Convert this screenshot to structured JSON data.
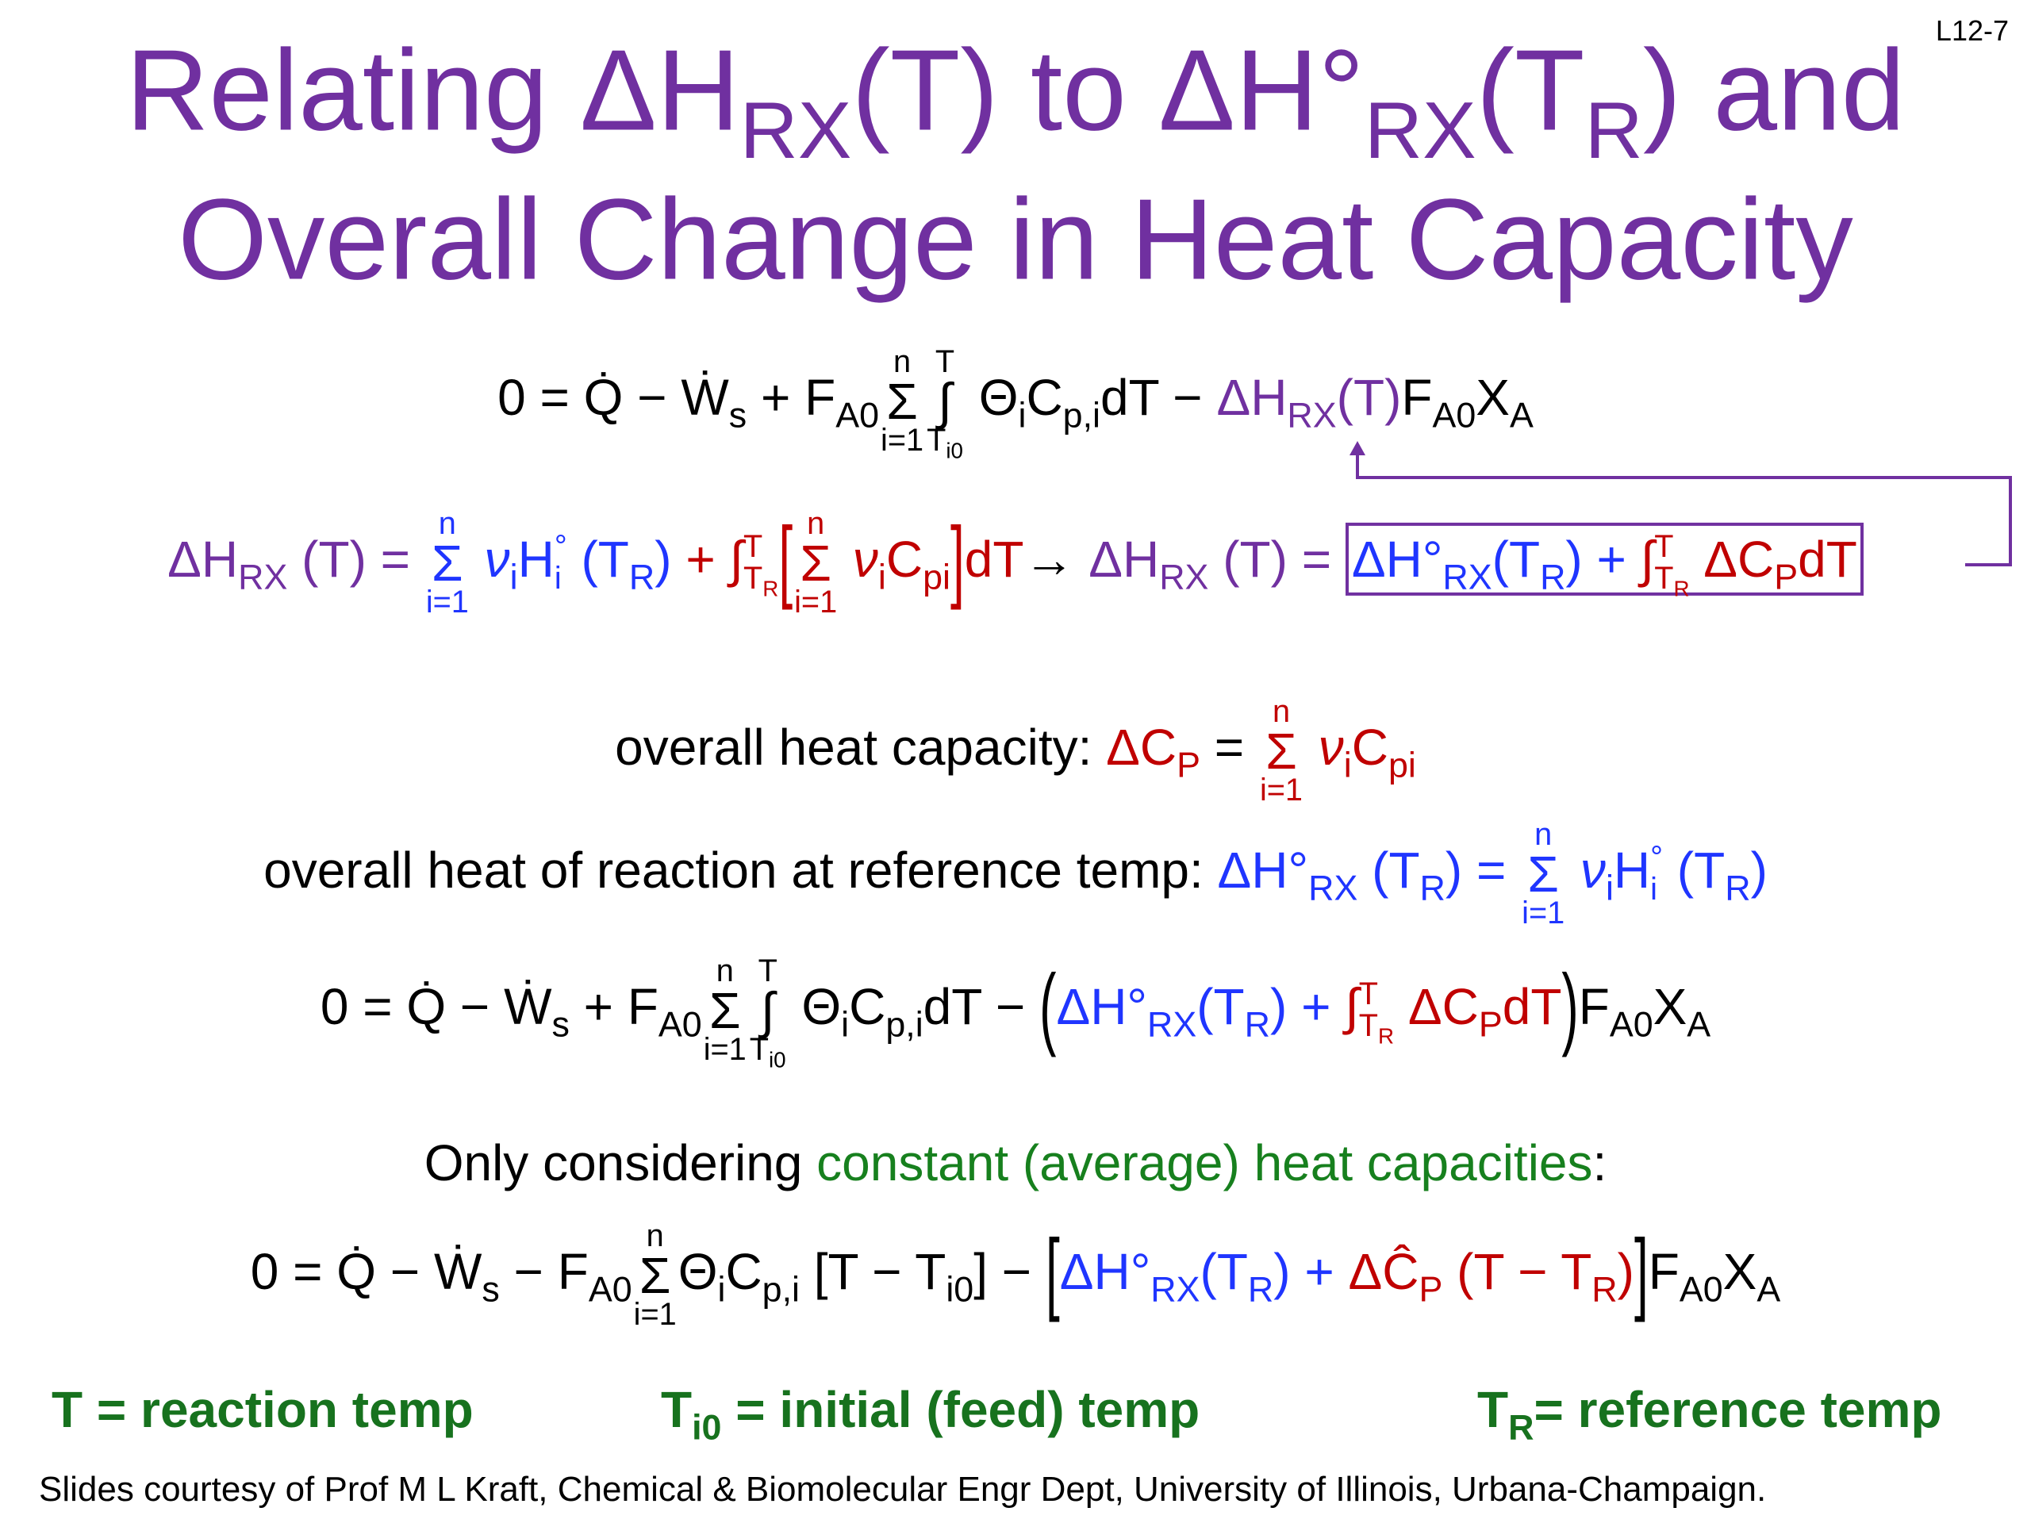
{
  "slide_number": "L12-7",
  "title": {
    "line1": [
      "Relating ΔH",
      "RX",
      "(T) to ΔH°",
      "RX",
      "(T",
      "R",
      ") and"
    ],
    "line2": "Overall Change in Heat Capacity"
  },
  "eq1": [
    "0 = Q̇ − Ẇ",
    "s",
    " + F",
    "A0",
    "n",
    "Σ",
    "i=1",
    "T",
    "∫",
    "T",
    "i0",
    " Θ",
    "i",
    "C",
    "p,i",
    "dT − ",
    "ΔH",
    "RX",
    "(T)",
    "F",
    "A0",
    "X",
    "A"
  ],
  "eq2": [
    "ΔH",
    "RX",
    " (T) = ",
    "n",
    "Σ",
    "i=1",
    " ν",
    "i",
    "H",
    "°",
    "i",
    " (T",
    "R",
    ")",
    " + ∫",
    "T",
    "T",
    "R",
    "[",
    "n",
    "Σ",
    "i=1",
    " ν",
    "i",
    "C",
    "pi",
    "]",
    "dT",
    "→ ",
    "ΔH",
    "RX",
    " (T) = ",
    "ΔH°",
    "RX",
    "(T",
    "R",
    ") + ",
    "∫",
    "T",
    "T",
    "R",
    " ΔC",
    "P",
    "dT"
  ],
  "heat_capacity": [
    "overall heat capacity: ",
    "ΔC",
    "P",
    " = ",
    "n",
    "Σ",
    "i=1",
    " ν",
    "i",
    "C",
    "pi"
  ],
  "heat_of_reaction": [
    "overall heat of reaction at reference temp: ",
    "ΔH°",
    "RX",
    " (T",
    "R",
    ") = ",
    "n",
    "Σ",
    "i=1",
    " ν",
    "i",
    "H",
    "°",
    "i",
    " (T",
    "R",
    ")"
  ],
  "eq3": [
    "0 = Q̇ − Ẇ",
    "s",
    " + F",
    "A0",
    "n",
    "Σ",
    "i=1",
    "T",
    "∫",
    "T",
    "i0",
    " Θ",
    "i",
    "C",
    "p,i",
    "dT − ",
    "(",
    "ΔH°",
    "RX",
    "(T",
    "R",
    ") + ",
    "∫",
    "T",
    "T",
    "R",
    " ΔC",
    "P",
    "dT",
    ")",
    "F",
    "A0",
    "X",
    "A"
  ],
  "only": [
    "Only considering ",
    "constant (average) heat capacities",
    ":"
  ],
  "eq4": [
    "0 = Q̇ − Ẇ",
    "s",
    " − F",
    "A0",
    "n",
    "Σ",
    "i=1",
    "Θ",
    "i",
    "C",
    "p,i",
    " [T − T",
    "i0",
    "] − ",
    "[",
    "ΔH°",
    "RX",
    "(T",
    "R",
    ") + ",
    "ΔĈ",
    "P",
    " (T − T",
    "R",
    ")",
    "]",
    "F",
    "A0",
    "X",
    "A"
  ],
  "definitions": [
    "T = reaction temp",
    "T",
    "i0",
    " = initial (feed) temp",
    "T",
    "R",
    "= reference temp"
  ],
  "footer": "Slides courtesy of Prof M L Kraft, Chemical & Biomolecular Engr Dept, University of Illinois, Urbana-Champaign."
}
